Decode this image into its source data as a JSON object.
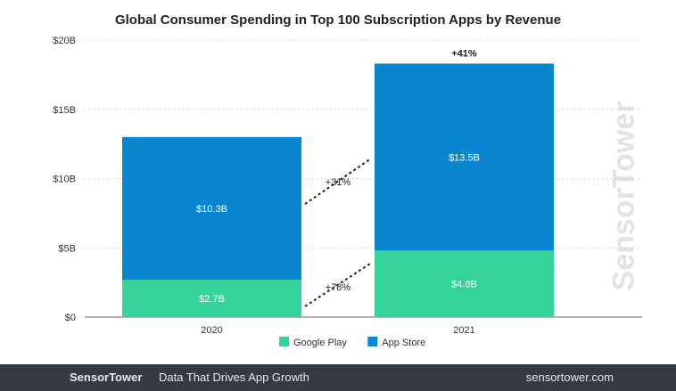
{
  "chart_data": {
    "type": "bar",
    "stacked": true,
    "title": "Global Consumer Spending in Top 100 Subscription Apps by Revenue",
    "categories": [
      "2020",
      "2021"
    ],
    "series": [
      {
        "name": "Google Play",
        "values": [
          2.7,
          4.8
        ],
        "labels": [
          "$2.7B",
          "$4.8B"
        ],
        "color": "#34d399"
      },
      {
        "name": "App Store",
        "values": [
          10.3,
          13.5
        ],
        "labels": [
          "$10.3B",
          "$13.5B"
        ],
        "color": "#0a86d1"
      }
    ],
    "ylim": [
      0,
      20
    ],
    "yticks": [
      0,
      5,
      10,
      15,
      20
    ],
    "ytick_labels": [
      "$0",
      "$5B",
      "$10B",
      "$15B",
      "$20B"
    ],
    "grid": true,
    "legend": "bottom",
    "annotations": {
      "total_growth": "+41%",
      "app_store_growth": "+31%",
      "google_play_growth": "+78%"
    }
  },
  "watermark": "SensorTower",
  "footer": {
    "brand": "SensorTower",
    "tagline": "Data That Drives App Growth",
    "url": "sensortower.com"
  }
}
